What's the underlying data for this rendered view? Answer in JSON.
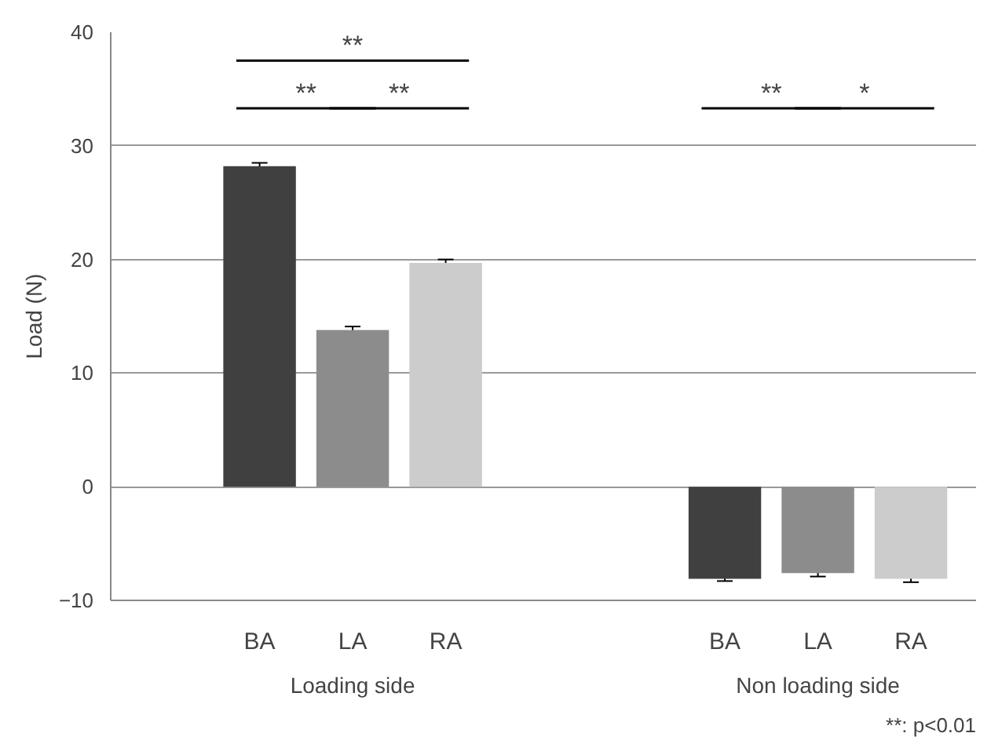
{
  "chart_data": {
    "type": "bar",
    "ylabel": "Load (N)",
    "categories": [
      "BA",
      "LA",
      "RA",
      null,
      null,
      "BA",
      "LA",
      "RA"
    ],
    "values": [
      28.2,
      13.8,
      19.7,
      null,
      null,
      -8.1,
      -7.6,
      -8.1
    ],
    "errors": [
      0.3,
      0.3,
      0.3,
      null,
      null,
      0.2,
      0.3,
      0.3
    ],
    "colors": [
      "#404040",
      "#8c8c8c",
      "#cccccc",
      "#ffffff",
      "#ffffff",
      "#404040",
      "#8c8c8c",
      "#cccccc"
    ],
    "ylim": [
      -10,
      40
    ],
    "yticks": [
      -10,
      0,
      10,
      20,
      30,
      40
    ],
    "grid": "y",
    "annotations": [
      "**",
      "**",
      "**",
      "**",
      "*",
      "Loading side",
      "Non loading side",
      "**: p<0.01"
    ]
  }
}
